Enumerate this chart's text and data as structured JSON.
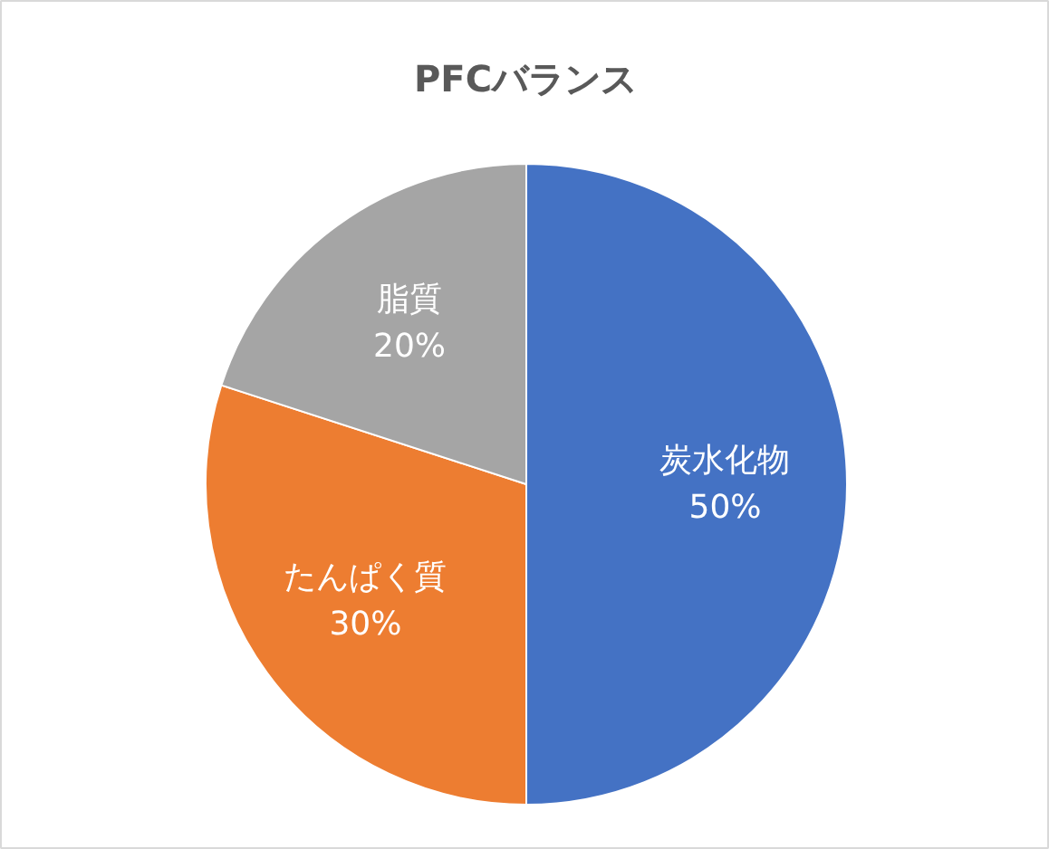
{
  "chart_data": {
    "type": "pie",
    "title": "PFCバランス",
    "categories": [
      "炭水化物",
      "たんぱく質",
      "脂質"
    ],
    "values": [
      50,
      30,
      20
    ],
    "colors": [
      "#4472c4",
      "#ed7d31",
      "#a5a5a5"
    ],
    "value_labels": [
      "50%",
      "30%",
      "20%"
    ]
  }
}
